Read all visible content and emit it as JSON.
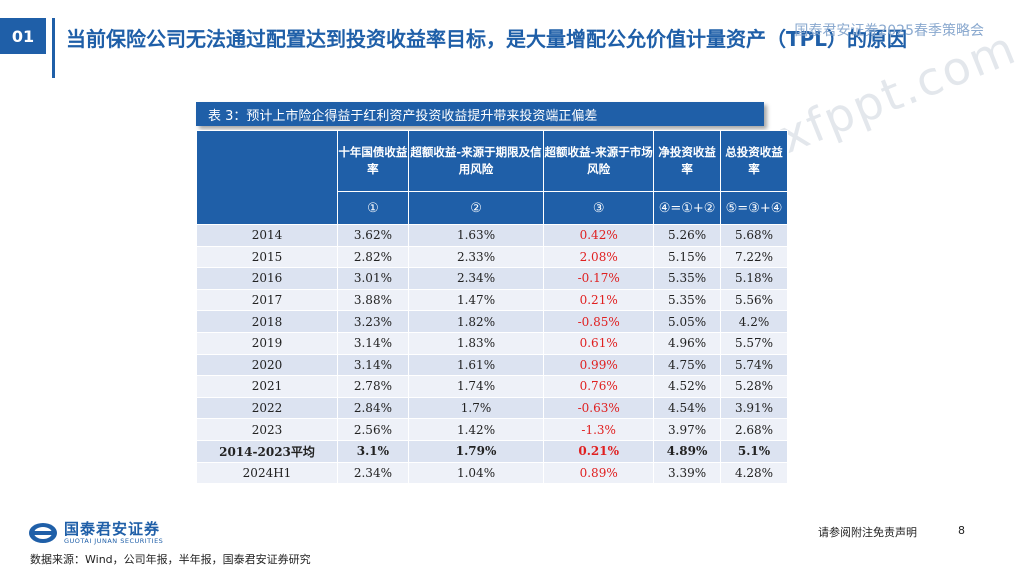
{
  "header": {
    "section_number": "01",
    "title": "当前保险公司无法通过配置达到投资收益率目标，是大量增配公允价值计量资产（TPL）的原因",
    "brand": "国泰君安证券2025春季策略会",
    "watermark": "xfppt.com"
  },
  "table": {
    "caption": "表 3：预计上市险企得益于红利资产投资收益提升带来投资端正偏差",
    "columns": [
      {
        "label": "十年国债收益率",
        "code": "①"
      },
      {
        "label": "超额收益-来源于期限及信用风险",
        "code": "②"
      },
      {
        "label": "超额收益-来源于市场风险",
        "code": "③"
      },
      {
        "label": "净投资收益率",
        "code": "④=①+②"
      },
      {
        "label": "总投资收益率",
        "code": "⑤=③+④"
      }
    ],
    "rows": [
      {
        "year": "2014",
        "c1": "3.62%",
        "c2": "1.63%",
        "c3": "0.42%",
        "c4": "5.26%",
        "c5": "5.68%"
      },
      {
        "year": "2015",
        "c1": "2.82%",
        "c2": "2.33%",
        "c3": "2.08%",
        "c4": "5.15%",
        "c5": "7.22%"
      },
      {
        "year": "2016",
        "c1": "3.01%",
        "c2": "2.34%",
        "c3": "-0.17%",
        "c4": "5.35%",
        "c5": "5.18%"
      },
      {
        "year": "2017",
        "c1": "3.88%",
        "c2": "1.47%",
        "c3": "0.21%",
        "c4": "5.35%",
        "c5": "5.56%"
      },
      {
        "year": "2018",
        "c1": "3.23%",
        "c2": "1.82%",
        "c3": "-0.85%",
        "c4": "5.05%",
        "c5": "4.2%"
      },
      {
        "year": "2019",
        "c1": "3.14%",
        "c2": "1.83%",
        "c3": "0.61%",
        "c4": "4.96%",
        "c5": "5.57%"
      },
      {
        "year": "2020",
        "c1": "3.14%",
        "c2": "1.61%",
        "c3": "0.99%",
        "c4": "4.75%",
        "c5": "5.74%"
      },
      {
        "year": "2021",
        "c1": "2.78%",
        "c2": "1.74%",
        "c3": "0.76%",
        "c4": "4.52%",
        "c5": "5.28%"
      },
      {
        "year": "2022",
        "c1": "2.84%",
        "c2": "1.7%",
        "c3": "-0.63%",
        "c4": "4.54%",
        "c5": "3.91%"
      },
      {
        "year": "2023",
        "c1": "2.56%",
        "c2": "1.42%",
        "c3": "-1.3%",
        "c4": "3.97%",
        "c5": "2.68%"
      },
      {
        "year": "2014-2023平均",
        "c1": "3.1%",
        "c2": "1.79%",
        "c3": "0.21%",
        "c4": "4.89%",
        "c5": "5.1%"
      },
      {
        "year": "2024H1",
        "c1": "2.34%",
        "c2": "1.04%",
        "c3": "0.89%",
        "c4": "3.39%",
        "c5": "4.28%"
      }
    ]
  },
  "footer": {
    "logo_cn": "国泰君安证券",
    "logo_en": "GUOTAI JUNAN SECURITIES",
    "source": "数据来源：Wind，公司年报，半年报，国泰君安证券研究",
    "disclaimer": "请参阅附注免责声明",
    "page": "8"
  },
  "colors": {
    "accent": "#1f5fa8",
    "negative_highlight": "#e02020"
  }
}
